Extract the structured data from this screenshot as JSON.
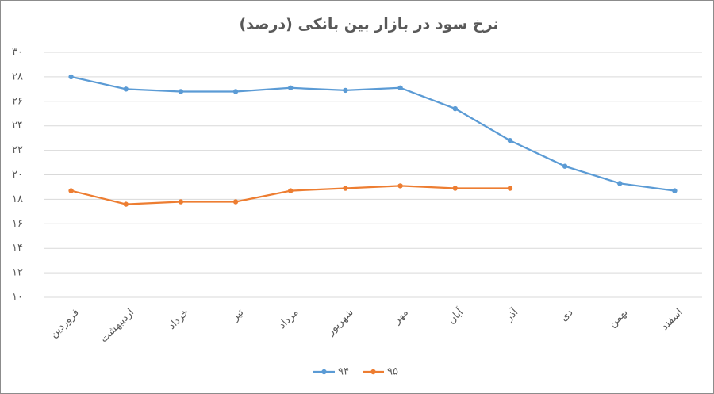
{
  "chart_data": {
    "type": "line",
    "title": "نرخ سود در بازار بین بانکی (درصد)",
    "categories": [
      "فروردین",
      "اردیبهشت",
      "خرداد",
      "تیر",
      "مرداد",
      "شهریور",
      "مهر",
      "آبان",
      "آذر",
      "دی",
      "بهمن",
      "اسفند"
    ],
    "series": [
      {
        "name": "۹۴",
        "color": "#5b9bd5",
        "values": [
          28.0,
          27.0,
          26.8,
          26.8,
          27.1,
          26.9,
          27.1,
          25.4,
          22.8,
          20.7,
          19.3,
          18.7
        ]
      },
      {
        "name": "۹۵",
        "color": "#ed7d31",
        "values": [
          18.7,
          17.6,
          17.8,
          17.8,
          18.7,
          18.9,
          19.1,
          18.9,
          18.9,
          null,
          null,
          null
        ]
      }
    ],
    "ylim": [
      10,
      30
    ],
    "yticks": [
      {
        "value": 10,
        "label": "۱۰"
      },
      {
        "value": 12,
        "label": "۱۲"
      },
      {
        "value": 14,
        "label": "۱۴"
      },
      {
        "value": 16,
        "label": "۱۶"
      },
      {
        "value": 18,
        "label": "۱۸"
      },
      {
        "value": 20,
        "label": "۲۰"
      },
      {
        "value": 22,
        "label": "۲۲"
      },
      {
        "value": 24,
        "label": "۲۴"
      },
      {
        "value": 26,
        "label": "۲۶"
      },
      {
        "value": 28,
        "label": "۲۸"
      },
      {
        "value": 30,
        "label": "۳۰"
      }
    ],
    "grid": true,
    "legend": "bottom"
  }
}
